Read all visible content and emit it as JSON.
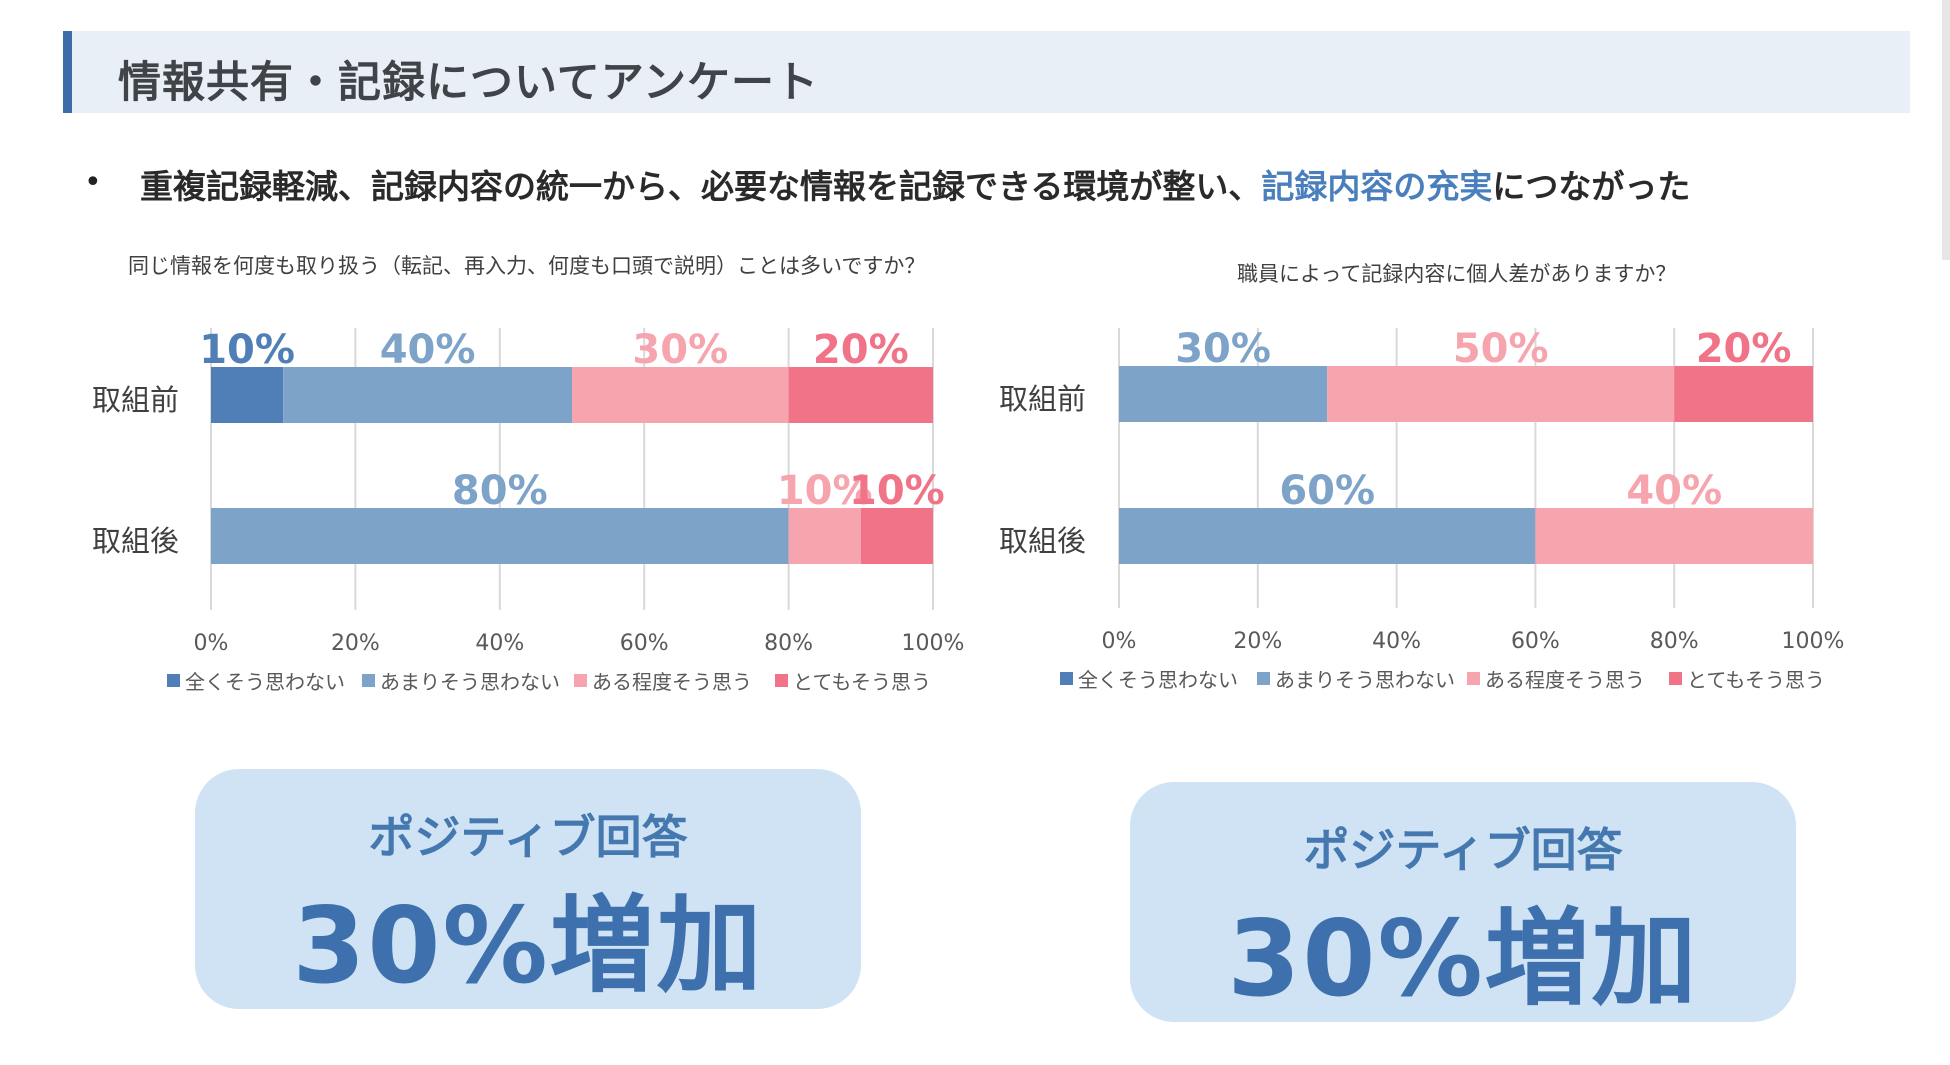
{
  "header": {
    "title": "情報共有・記録についてアンケート"
  },
  "bullet": {
    "marker": "•",
    "text_before": "重複記録軽減、記録内容の統一から、必要な情報を記録できる環境が整い、",
    "text_highlight": "記録内容の充実",
    "text_after": "につながった"
  },
  "colors": {
    "accent": "#3b6ea8",
    "highlight_text": "#4a7fbd",
    "dark_blue": "#4f7fb6",
    "light_blue": "#7ea3c9",
    "light_pink": "#f6a4ae",
    "dark_pink": "#f07388",
    "positive_box": "#cfe3f5",
    "positive_text": "#3d70ac"
  },
  "chart_data": [
    {
      "type": "bar",
      "orientation": "horizontal",
      "stacked": true,
      "title": "同じ情報を何度も取り扱う（転記、再入力、何度も口頭で説明）ことは多いですか？",
      "categories": [
        "取組前",
        "取組後"
      ],
      "series": [
        {
          "name": "全くそう思わない",
          "color": "#4f7fb6",
          "values": [
            10,
            0
          ],
          "labels": [
            "10%",
            ""
          ]
        },
        {
          "name": "あまりそう思わない",
          "color": "#7ea3c9",
          "values": [
            40,
            80
          ],
          "labels": [
            "40%",
            "80%"
          ]
        },
        {
          "name": "ある程度そう思う",
          "color": "#f6a4ae",
          "values": [
            30,
            10
          ],
          "labels": [
            "30%",
            "10%"
          ]
        },
        {
          "name": "とてもそう思う",
          "color": "#f07388",
          "values": [
            20,
            10
          ],
          "labels": [
            "20%",
            "10%"
          ]
        }
      ],
      "xlim": [
        0,
        100
      ],
      "x_ticks": [
        "0%",
        "20%",
        "40%",
        "60%",
        "80%",
        "100%"
      ],
      "grid": true,
      "legend": "bottom"
    },
    {
      "type": "bar",
      "orientation": "horizontal",
      "stacked": true,
      "title": "職員によって記録内容に個人差がありますか？",
      "categories": [
        "取組前",
        "取組後"
      ],
      "series": [
        {
          "name": "全くそう思わない",
          "color": "#4f7fb6",
          "values": [
            0,
            0
          ],
          "labels": [
            "",
            ""
          ]
        },
        {
          "name": "あまりそう思わない",
          "color": "#7ea3c9",
          "values": [
            30,
            60
          ],
          "labels": [
            "30%",
            "60%"
          ]
        },
        {
          "name": "ある程度そう思う",
          "color": "#f6a4ae",
          "values": [
            50,
            40
          ],
          "labels": [
            "50%",
            "40%"
          ]
        },
        {
          "name": "とてもそう思う",
          "color": "#f07388",
          "values": [
            20,
            0
          ],
          "labels": [
            "20%",
            ""
          ]
        }
      ],
      "xlim": [
        0,
        100
      ],
      "x_ticks": [
        "0%",
        "20%",
        "40%",
        "60%",
        "80%",
        "100%"
      ],
      "grid": true,
      "legend": "bottom"
    }
  ],
  "positive_boxes": [
    {
      "line1": "ポジティブ回答",
      "line2": "30%増加"
    },
    {
      "line1": "ポジティブ回答",
      "line2": "30%増加"
    }
  ]
}
